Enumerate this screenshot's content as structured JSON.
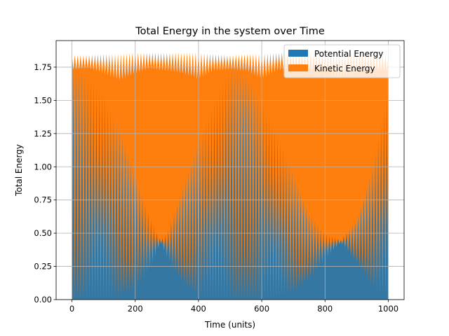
{
  "chart_data": {
    "type": "area",
    "title": "Total Energy in the system over Time",
    "xlabel": "Time (units)",
    "ylabel": "Total Energy",
    "xlim": [
      -50,
      1050
    ],
    "ylim": [
      0,
      1.95
    ],
    "xticks": [
      0,
      200,
      400,
      600,
      800,
      1000
    ],
    "xtick_labels": [
      "0",
      "200",
      "400",
      "600",
      "800",
      "1000"
    ],
    "yticks": [
      0,
      0.25,
      0.5,
      0.75,
      1.0,
      1.25,
      1.5,
      1.75
    ],
    "ytick_labels": [
      "0.00",
      "0.25",
      "0.50",
      "0.75",
      "1.00",
      "1.25",
      "1.50",
      "1.75"
    ],
    "grid": true,
    "legend_position": "top-right",
    "stacked": true,
    "x": [
      0,
      50,
      100,
      150,
      200,
      250,
      280,
      300,
      350,
      400,
      450,
      500,
      550,
      600,
      650,
      700,
      750,
      800,
      850,
      900,
      950,
      1000
    ],
    "series": [
      {
        "name": "Potential Energy",
        "color": "#1f77b4",
        "peak": [
          1.75,
          1.7,
          1.55,
          1.3,
          0.95,
          0.6,
          0.45,
          0.5,
          0.85,
          1.2,
          1.5,
          1.75,
          1.7,
          1.5,
          1.25,
          0.95,
          0.65,
          0.5,
          0.45,
          0.6,
          1.0,
          1.6
        ],
        "trough": [
          0.0,
          0.0,
          0.0,
          0.02,
          0.08,
          0.25,
          0.43,
          0.32,
          0.12,
          0.03,
          0.0,
          0.0,
          0.0,
          0.0,
          0.02,
          0.05,
          0.15,
          0.3,
          0.43,
          0.28,
          0.1,
          0.0
        ]
      },
      {
        "name": "Kinetic Energy",
        "color": "#ff7f0e",
        "total_peak": [
          1.84,
          1.84,
          1.85,
          1.85,
          1.86,
          1.86,
          1.86,
          1.86,
          1.86,
          1.86,
          1.85,
          1.84,
          1.85,
          1.85,
          1.86,
          1.86,
          1.86,
          1.86,
          1.86,
          1.86,
          1.85,
          1.84
        ],
        "total_trough": [
          1.73,
          1.74,
          1.7,
          1.65,
          1.7,
          1.74,
          1.72,
          1.72,
          1.7,
          1.66,
          1.72,
          1.73,
          1.72,
          1.66,
          1.72,
          1.74,
          1.72,
          1.7,
          1.66,
          1.7,
          1.72,
          1.72
        ]
      }
    ]
  }
}
